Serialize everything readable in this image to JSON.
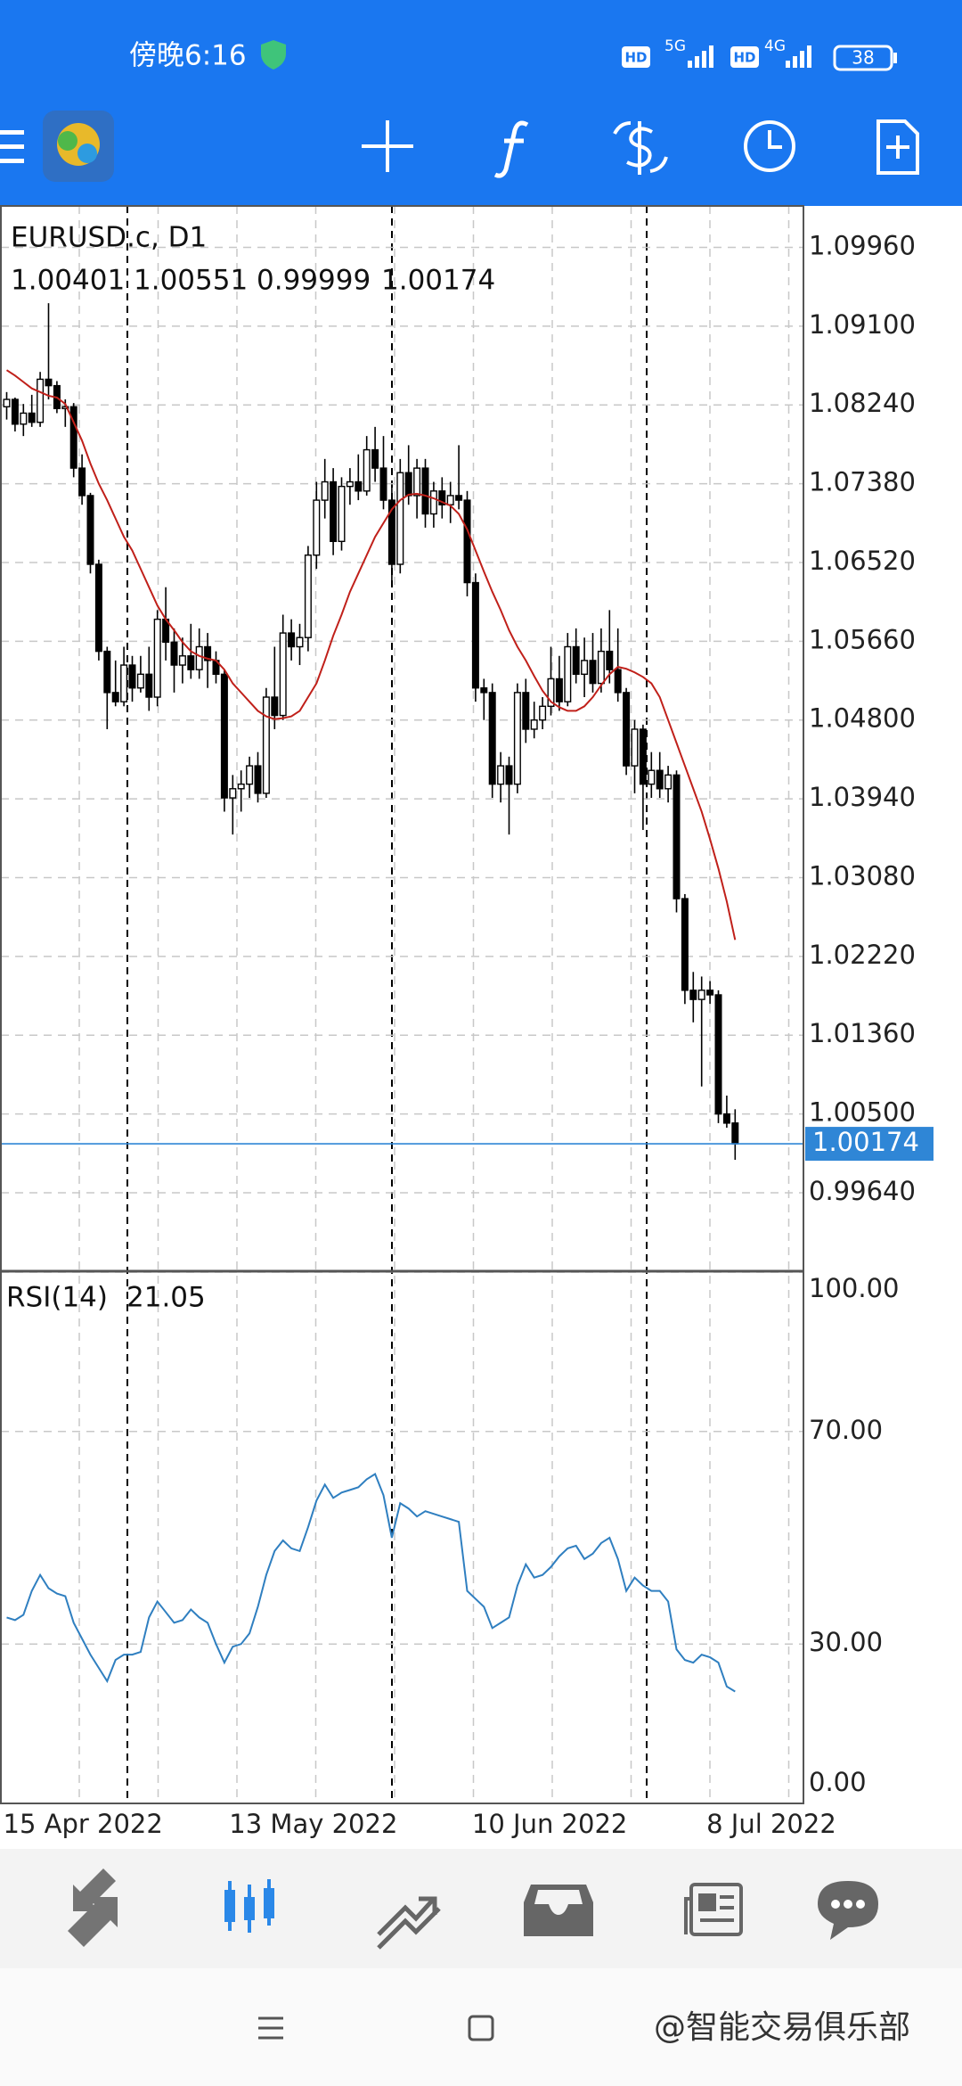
{
  "status": {
    "time": "傍晚6:16",
    "net": [
      "HD",
      "5G",
      "HD",
      "4G"
    ],
    "battery": "38"
  },
  "watermark": "@智能交易俱乐部",
  "chart_data": [
    {
      "type": "candlestick",
      "title": "EURUSD.c, D1",
      "categories": [
        "15 Apr 2022",
        null,
        null,
        null,
        null,
        null,
        null,
        null,
        null,
        null,
        null,
        null,
        null,
        null,
        null,
        null,
        null,
        null,
        null,
        null,
        null,
        null,
        null,
        null,
        null,
        null,
        null,
        "13 May 2022",
        null,
        null,
        null,
        null,
        null,
        null,
        null,
        null,
        null,
        null,
        null,
        null,
        null,
        null,
        null,
        null,
        null,
        null,
        null,
        null,
        null,
        null,
        null,
        null,
        null,
        null,
        null,
        null,
        "10 Jun 2022",
        null,
        null,
        null,
        null,
        null,
        null,
        null,
        null,
        null,
        null,
        null,
        null,
        null,
        null,
        null,
        null,
        null,
        null,
        null,
        null,
        null,
        null,
        null,
        null,
        null,
        null,
        null,
        "8 Jul 2022",
        null,
        null,
        null
      ],
      "ohlc": [
        [
          1.0822,
          1.0838,
          1.0808,
          1.083
        ],
        [
          1.083,
          1.0832,
          1.0795,
          1.0803
        ],
        [
          1.0803,
          1.0825,
          1.079,
          1.0815
        ],
        [
          1.0815,
          1.0835,
          1.08,
          1.0805
        ],
        [
          1.0805,
          1.086,
          1.08,
          1.0852
        ],
        [
          1.0852,
          1.0935,
          1.083,
          1.0845
        ],
        [
          1.0845,
          1.085,
          1.0815,
          1.082
        ],
        [
          1.082,
          1.083,
          1.08,
          1.0822
        ],
        [
          1.0822,
          1.0826,
          1.0745,
          1.0755
        ],
        [
          1.0755,
          1.077,
          1.0715,
          1.0725
        ],
        [
          1.0725,
          1.0728,
          1.064,
          1.065
        ],
        [
          1.065,
          1.0655,
          1.0545,
          1.0555
        ],
        [
          1.0555,
          1.056,
          1.047,
          1.051
        ],
        [
          1.051,
          1.0545,
          1.0495,
          1.05
        ],
        [
          1.05,
          1.056,
          1.0495,
          1.054
        ],
        [
          1.054,
          1.055,
          1.05,
          1.0515
        ],
        [
          1.0515,
          1.055,
          1.051,
          1.053
        ],
        [
          1.053,
          1.056,
          1.049,
          1.0505
        ],
        [
          1.0505,
          1.06,
          1.0495,
          1.059
        ],
        [
          1.059,
          1.0625,
          1.0545,
          1.0565
        ],
        [
          1.0565,
          1.058,
          1.051,
          1.054
        ],
        [
          1.054,
          1.057,
          1.052,
          1.055
        ],
        [
          1.055,
          1.0585,
          1.0525,
          1.0535
        ],
        [
          1.0535,
          1.058,
          1.0525,
          1.056
        ],
        [
          1.056,
          1.0575,
          1.0515,
          1.0545
        ],
        [
          1.0545,
          1.0555,
          1.052,
          1.053
        ],
        [
          1.053,
          1.0535,
          1.038,
          1.0395
        ],
        [
          1.0395,
          1.042,
          1.0355,
          1.0405
        ],
        [
          1.0405,
          1.0425,
          1.038,
          1.041
        ],
        [
          1.041,
          1.044,
          1.0395,
          1.043
        ],
        [
          1.043,
          1.0445,
          1.039,
          1.04
        ],
        [
          1.04,
          1.0515,
          1.0395,
          1.0505
        ],
        [
          1.0505,
          1.056,
          1.047,
          1.0485
        ],
        [
          1.0485,
          1.0595,
          1.048,
          1.0575
        ],
        [
          1.0575,
          1.059,
          1.0545,
          1.056
        ],
        [
          1.056,
          1.0585,
          1.054,
          1.057
        ],
        [
          1.057,
          1.067,
          1.0555,
          1.066
        ],
        [
          1.066,
          1.074,
          1.0645,
          1.072
        ],
        [
          1.072,
          1.0765,
          1.07,
          1.074
        ],
        [
          1.074,
          1.0755,
          1.066,
          1.0675
        ],
        [
          1.0675,
          1.0745,
          1.0665,
          1.0735
        ],
        [
          1.0735,
          1.0755,
          1.0715,
          1.074
        ],
        [
          1.074,
          1.077,
          1.072,
          1.073
        ],
        [
          1.073,
          1.079,
          1.0725,
          1.0775
        ],
        [
          1.0775,
          1.08,
          1.074,
          1.0755
        ],
        [
          1.0755,
          1.079,
          1.071,
          1.072
        ],
        [
          1.072,
          1.0735,
          1.063,
          1.065
        ],
        [
          1.065,
          1.0765,
          1.064,
          1.075
        ],
        [
          1.075,
          1.078,
          1.0715,
          1.0725
        ],
        [
          1.0725,
          1.0765,
          1.07,
          1.0755
        ],
        [
          1.0755,
          1.0765,
          1.069,
          1.0705
        ],
        [
          1.0705,
          1.074,
          1.069,
          1.073
        ],
        [
          1.073,
          1.0745,
          1.07,
          1.0715
        ],
        [
          1.0715,
          1.074,
          1.0695,
          1.0725
        ],
        [
          1.0725,
          1.078,
          1.071,
          1.072
        ],
        [
          1.072,
          1.073,
          1.0615,
          1.063
        ],
        [
          1.063,
          1.064,
          1.05,
          1.0515
        ],
        [
          1.0515,
          1.0525,
          1.048,
          1.051
        ],
        [
          1.051,
          1.052,
          1.0395,
          1.041
        ],
        [
          1.041,
          1.0445,
          1.039,
          1.043
        ],
        [
          1.043,
          1.044,
          1.0355,
          1.041
        ],
        [
          1.041,
          1.052,
          1.04,
          1.051
        ],
        [
          1.051,
          1.0525,
          1.0455,
          1.047
        ],
        [
          1.047,
          1.05,
          1.046,
          1.048
        ],
        [
          1.048,
          1.0505,
          1.047,
          1.0495
        ],
        [
          1.0495,
          1.056,
          1.0485,
          1.0525
        ],
        [
          1.0525,
          1.055,
          1.049,
          1.05
        ],
        [
          1.05,
          1.0575,
          1.0495,
          1.056
        ],
        [
          1.056,
          1.058,
          1.052,
          1.053
        ],
        [
          1.053,
          1.057,
          1.0505,
          1.0545
        ],
        [
          1.0545,
          1.0575,
          1.051,
          1.052
        ],
        [
          1.052,
          1.058,
          1.051,
          1.0555
        ],
        [
          1.0555,
          1.06,
          1.052,
          1.0535
        ],
        [
          1.0535,
          1.058,
          1.05,
          1.051
        ],
        [
          1.051,
          1.0515,
          1.042,
          1.043
        ],
        [
          1.043,
          1.048,
          1.04,
          1.047
        ],
        [
          1.047,
          1.0475,
          1.036,
          1.041
        ],
        [
          1.041,
          1.0445,
          1.0395,
          1.0425
        ],
        [
          1.0425,
          1.0445,
          1.0395,
          1.0405
        ],
        [
          1.0405,
          1.043,
          1.039,
          1.042
        ],
        [
          1.042,
          1.0425,
          1.027,
          1.0285
        ],
        [
          1.0285,
          1.029,
          1.017,
          1.0185
        ],
        [
          1.0185,
          1.0205,
          1.015,
          1.0175
        ],
        [
          1.0175,
          1.02,
          1.008,
          1.0185
        ],
        [
          1.0185,
          1.0195,
          1.017,
          1.018
        ],
        [
          1.018,
          1.0185,
          1.004,
          1.005
        ],
        [
          1.005,
          1.007,
          1.0035,
          1.004
        ],
        [
          1.00401,
          1.00551,
          0.99999,
          1.00174
        ]
      ],
      "ma": {
        "color": "#c0201a",
        "values": [
          1.0862,
          1.0856,
          1.0849,
          1.0842,
          1.0838,
          1.0834,
          1.0832,
          1.0825,
          1.0805,
          1.0785,
          1.076,
          1.0738,
          1.072,
          1.07,
          1.068,
          1.0665,
          1.0645,
          1.0625,
          1.0605,
          1.059,
          1.0578,
          1.0565,
          1.0555,
          1.055,
          1.0547,
          1.0545,
          1.0535,
          1.052,
          1.051,
          1.05,
          1.049,
          1.0484,
          1.0481,
          1.0482,
          1.0484,
          1.049,
          1.0505,
          1.052,
          1.0545,
          1.0572,
          1.0595,
          1.062,
          1.064,
          1.066,
          1.068,
          1.0695,
          1.071,
          1.072,
          1.0726,
          1.0727,
          1.0725,
          1.0722,
          1.0718,
          1.0714,
          1.0705,
          1.0688,
          1.0665,
          1.0642,
          1.062,
          1.06,
          1.0578,
          1.056,
          1.0545,
          1.0528,
          1.0512,
          1.05,
          1.0494,
          1.049,
          1.049,
          1.0495,
          1.0505,
          1.0518,
          1.053,
          1.0538,
          1.0536,
          1.0532,
          1.0527,
          1.052,
          1.0505,
          1.048,
          1.0455,
          1.043,
          1.0405,
          1.038,
          1.035,
          1.0318,
          1.0282,
          1.024
        ]
      },
      "bull_color": "#ffffff",
      "bear_color": "#000000",
      "price_line_color": "#2f86d6",
      "ylim": [
        0.98793,
        1.10412
      ],
      "yticks": [
        {
          "value": 1.0996,
          "label": "1.09960"
        },
        {
          "value": 1.091,
          "label": "1.09100"
        },
        {
          "value": 1.0824,
          "label": "1.08240"
        },
        {
          "value": 1.0738,
          "label": "1.07380"
        },
        {
          "value": 1.0652,
          "label": "1.06520"
        },
        {
          "value": 1.0566,
          "label": "1.05660"
        },
        {
          "value": 1.048,
          "label": "1.04800"
        },
        {
          "value": 1.0394,
          "label": "1.03940"
        },
        {
          "value": 1.0308,
          "label": "1.03080"
        },
        {
          "value": 1.0222,
          "label": "1.02220"
        },
        {
          "value": 1.0136,
          "label": "1.01360"
        },
        {
          "value": 1.005,
          "label": "1.00500"
        },
        {
          "value": 0.9964,
          "label": "0.99640"
        }
      ],
      "grid": true
    },
    {
      "type": "line",
      "title": "RSI(14)",
      "color": "#2f7fc0",
      "values": [
        35,
        34.5,
        35.5,
        40,
        43,
        40.5,
        39.5,
        39,
        34,
        31,
        28,
        25.5,
        23,
        27,
        28,
        28,
        28.5,
        35,
        38,
        36,
        34,
        34.5,
        36.5,
        35,
        34,
        30,
        26.5,
        29.5,
        30,
        32,
        37,
        43,
        47.5,
        49.5,
        48,
        47.5,
        52,
        57,
        60,
        57.5,
        58.5,
        59,
        59.5,
        61,
        62,
        58,
        50,
        56.5,
        55.5,
        54,
        55,
        54.5,
        54,
        53.5,
        53,
        40,
        38.5,
        37,
        33,
        34,
        35,
        41,
        45,
        42.5,
        43,
        44.5,
        46.5,
        48,
        48.5,
        46,
        47,
        49,
        50,
        46,
        40,
        42.5,
        41,
        40,
        40,
        38,
        29,
        27,
        26.5,
        28,
        27.5,
        26.5,
        22,
        21.05
      ],
      "ylim": [
        0,
        100
      ],
      "yticks": [
        {
          "value": 100,
          "label": "100.00"
        },
        {
          "value": 70,
          "label": "70.00"
        },
        {
          "value": 30,
          "label": "30.00"
        },
        {
          "value": 0,
          "label": "0.00"
        }
      ],
      "grid": true
    }
  ]
}
